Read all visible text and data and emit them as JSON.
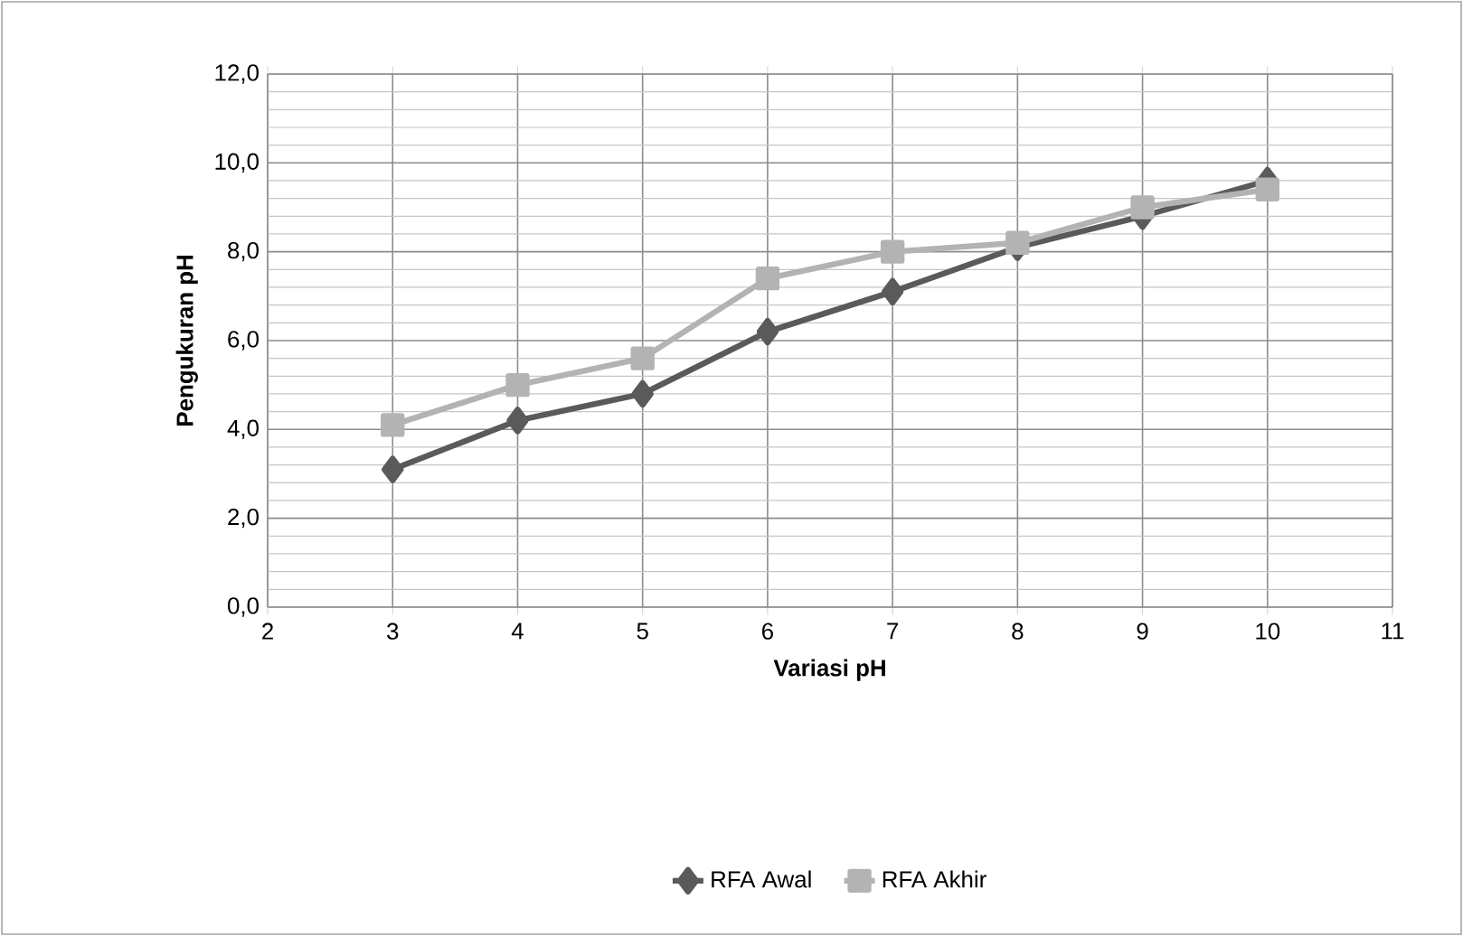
{
  "chart_data": {
    "type": "line",
    "xlabel": "Variasi pH",
    "ylabel": "Pengukuran pH",
    "x": [
      3,
      4,
      5,
      6,
      7,
      8,
      9,
      10
    ],
    "series": [
      {
        "name": "RFA Awal",
        "color": "#5a5a5a",
        "marker": "diamond",
        "values": [
          3.1,
          4.2,
          4.8,
          6.2,
          7.1,
          8.1,
          8.8,
          9.6
        ]
      },
      {
        "name": "RFA Akhir",
        "color": "#b3b3b3",
        "marker": "square",
        "values": [
          4.1,
          5.0,
          5.6,
          7.4,
          8.0,
          8.2,
          9.0,
          9.4
        ]
      }
    ],
    "xlim": [
      2,
      11
    ],
    "xticks": [
      2,
      3,
      4,
      5,
      6,
      7,
      8,
      9,
      10,
      11
    ],
    "ylim": [
      0,
      12
    ],
    "yticks": [
      {
        "value": 0,
        "label": "0,0"
      },
      {
        "value": 2,
        "label": "2,0"
      },
      {
        "value": 4,
        "label": "4,0"
      },
      {
        "value": 6,
        "label": "6,0"
      },
      {
        "value": 8,
        "label": "8,0"
      },
      {
        "value": 10,
        "label": "10,0"
      },
      {
        "value": 12,
        "label": "12,0"
      }
    ],
    "grid": true,
    "legend": "bottom",
    "line_style": "solid"
  }
}
